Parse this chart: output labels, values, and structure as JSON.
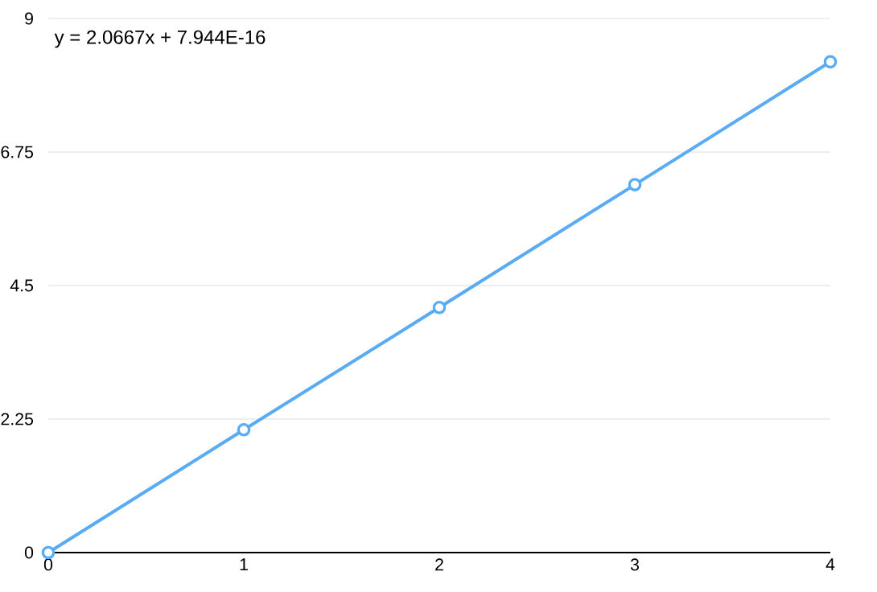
{
  "chart_data": {
    "type": "line",
    "x": [
      0,
      1,
      2,
      3,
      4
    ],
    "values": [
      0,
      2.07,
      4.13,
      6.2,
      8.27
    ],
    "color": "#5aabf5",
    "marker": "circle",
    "grid": "y",
    "xlim": [
      0,
      4
    ],
    "ylim": [
      0,
      9
    ],
    "xticks": [
      0,
      1,
      2,
      3,
      4
    ],
    "yticks": [
      0,
      2.25,
      4.5,
      6.75,
      9
    ],
    "annotations": [
      "y = 2.0667x + 7.944E-16"
    ]
  }
}
